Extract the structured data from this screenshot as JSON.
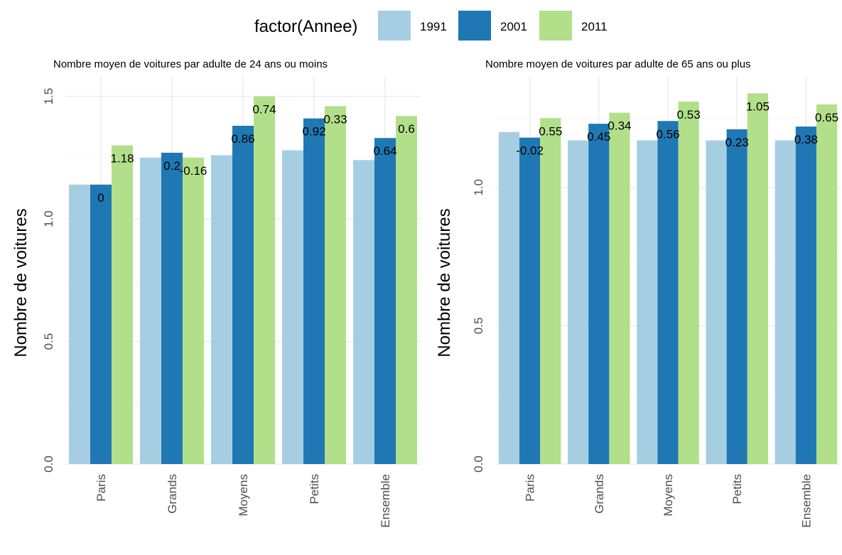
{
  "legend": {
    "title": "factor(Annee)",
    "items": [
      {
        "label": "1991",
        "color": "#a6cee3"
      },
      {
        "label": "2001",
        "color": "#1f78b4"
      },
      {
        "label": "2011",
        "color": "#b2df8a"
      }
    ]
  },
  "chart_data": [
    {
      "type": "bar",
      "title": "Nombre moyen de voitures par adulte de 24 ans ou moins",
      "xlabel": "",
      "ylabel": "Nombre de voitures",
      "ylim": [
        0,
        1.5
      ],
      "yticks": [
        "0.0",
        "0.5",
        "1.0",
        "1.5"
      ],
      "grid": true,
      "categories": [
        "Paris",
        "Grands",
        "Moyens",
        "Petits",
        "Ensemble"
      ],
      "series": [
        {
          "name": "1991",
          "values": [
            1.14,
            1.25,
            1.26,
            1.28,
            1.24
          ]
        },
        {
          "name": "2001",
          "values": [
            1.14,
            1.27,
            1.38,
            1.41,
            1.33
          ]
        },
        {
          "name": "2011",
          "values": [
            1.3,
            1.25,
            1.5,
            1.46,
            1.42
          ]
        }
      ],
      "data_labels": [
        {
          "series": "2001",
          "labels": [
            "0",
            "0.2",
            "0.86",
            "0.92",
            "0.64"
          ]
        },
        {
          "series": "2011",
          "labels": [
            "1.18",
            "-0.16",
            "0.74",
            "0.33",
            "0.6"
          ]
        }
      ]
    },
    {
      "type": "bar",
      "title": "Nombre moyen de voitures par adulte de 65 ans ou plus",
      "xlabel": "",
      "ylabel": "Nombre de voitures",
      "ylim": [
        0,
        1.25
      ],
      "yticks": [
        "0.0",
        "0.5",
        "1.0"
      ],
      "grid": true,
      "categories": [
        "Paris",
        "Grands",
        "Moyens",
        "Petits",
        "Ensemble"
      ],
      "series": [
        {
          "name": "1991",
          "values": [
            1.2,
            1.17,
            1.17,
            1.17,
            1.17
          ]
        },
        {
          "name": "2001",
          "values": [
            1.18,
            1.23,
            1.24,
            1.21,
            1.22
          ]
        },
        {
          "name": "2011",
          "values": [
            1.25,
            1.27,
            1.31,
            1.34,
            1.3
          ]
        }
      ],
      "data_labels": [
        {
          "series": "2001",
          "labels": [
            "-0.02",
            "0.45",
            "0.56",
            "0.23",
            "0.38"
          ]
        },
        {
          "series": "2011",
          "labels": [
            "0.55",
            "0.34",
            "0.53",
            "1.05",
            "0.65"
          ]
        }
      ]
    }
  ]
}
